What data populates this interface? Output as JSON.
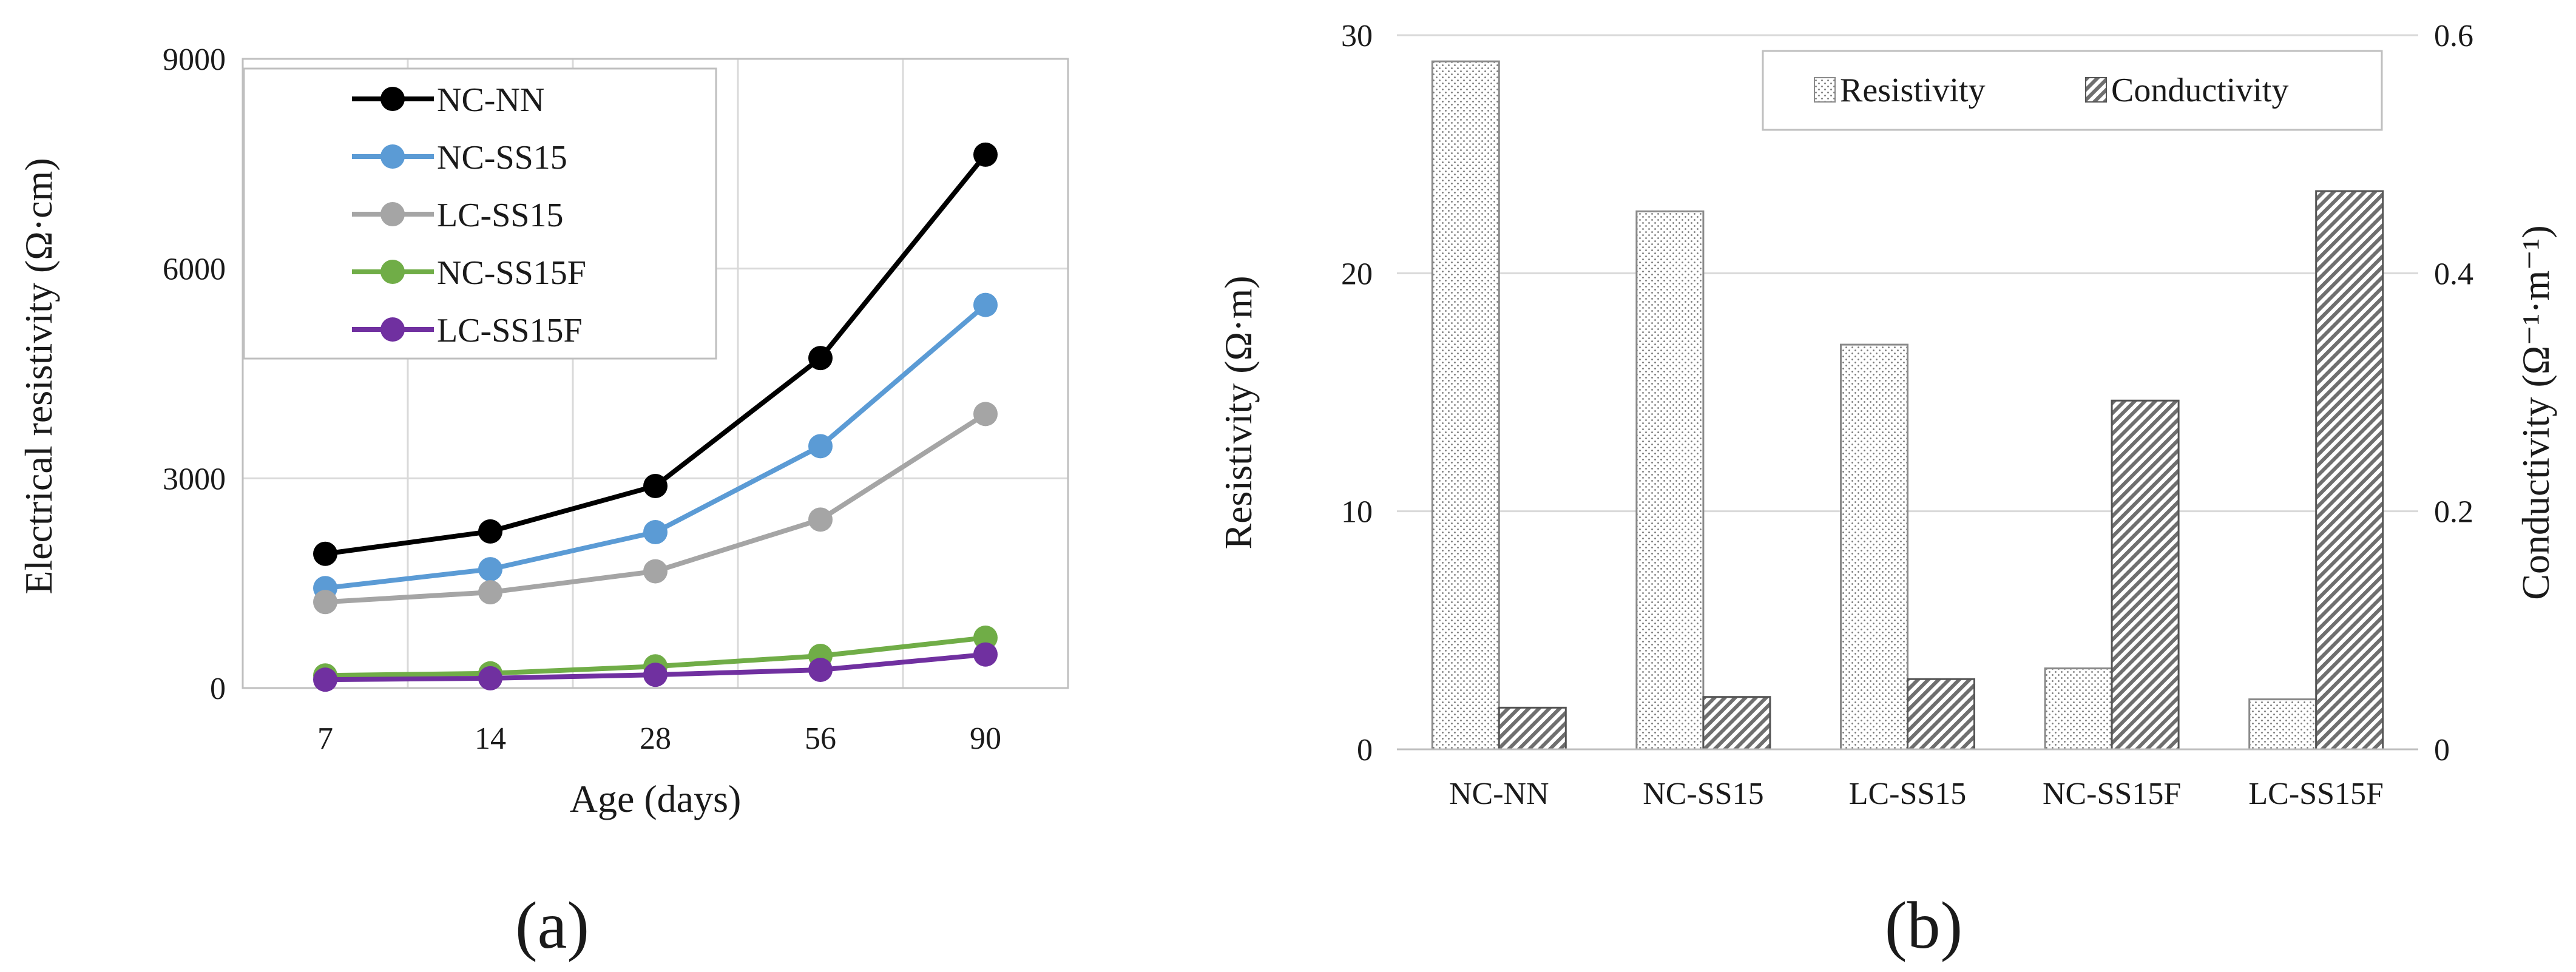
{
  "chart_data": [
    {
      "type": "line",
      "x": [
        "7",
        "14",
        "28",
        "56",
        "90"
      ],
      "xlabel": "Age (days)",
      "ylabel": "Electrical resistivity (Ω·cm)",
      "ylim": [
        0,
        9000
      ],
      "yticks": [
        "0",
        "3000",
        "6000",
        "9000"
      ],
      "grid": true,
      "legend_position": "top-left",
      "caption": "(a)",
      "series": [
        {
          "name": "NC-NN",
          "color": "#000000",
          "values": [
            1920,
            2240,
            2890,
            4720,
            7630
          ]
        },
        {
          "name": "NC-SS15",
          "color": "#5b9bd5",
          "values": [
            1430,
            1700,
            2230,
            3460,
            5480
          ]
        },
        {
          "name": "LC-SS15",
          "color": "#a5a5a5",
          "values": [
            1230,
            1370,
            1670,
            2410,
            3920
          ]
        },
        {
          "name": "NC-SS15F",
          "color": "#70ad47",
          "values": [
            180,
            210,
            310,
            460,
            720
          ]
        },
        {
          "name": "LC-SS15F",
          "color": "#7030a0",
          "values": [
            120,
            140,
            190,
            260,
            480
          ]
        }
      ]
    },
    {
      "type": "bar",
      "categories": [
        "NC-NN",
        "NC-SS15",
        "LC-SS15",
        "NC-SS15F",
        "LC-SS15F"
      ],
      "ylabel": "Resistivity (Ω·m)",
      "y2label": "Conductivity (Ω⁻¹·m⁻¹)",
      "ylim": [
        0,
        30
      ],
      "y2lim": [
        0,
        0.6
      ],
      "yticks": [
        "0",
        "10",
        "20",
        "30"
      ],
      "y2ticks": [
        "0",
        "0.2",
        "0.4",
        "0.6"
      ],
      "grid": true,
      "legend_position": "top-right",
      "caption": "(b)",
      "series": [
        {
          "name": "Resistivity",
          "axis": "left",
          "values": [
            28.9,
            22.6,
            17.0,
            3.4,
            2.1
          ]
        },
        {
          "name": "Conductivity",
          "axis": "right",
          "values": [
            0.035,
            0.044,
            0.059,
            0.293,
            0.469
          ]
        }
      ]
    }
  ]
}
